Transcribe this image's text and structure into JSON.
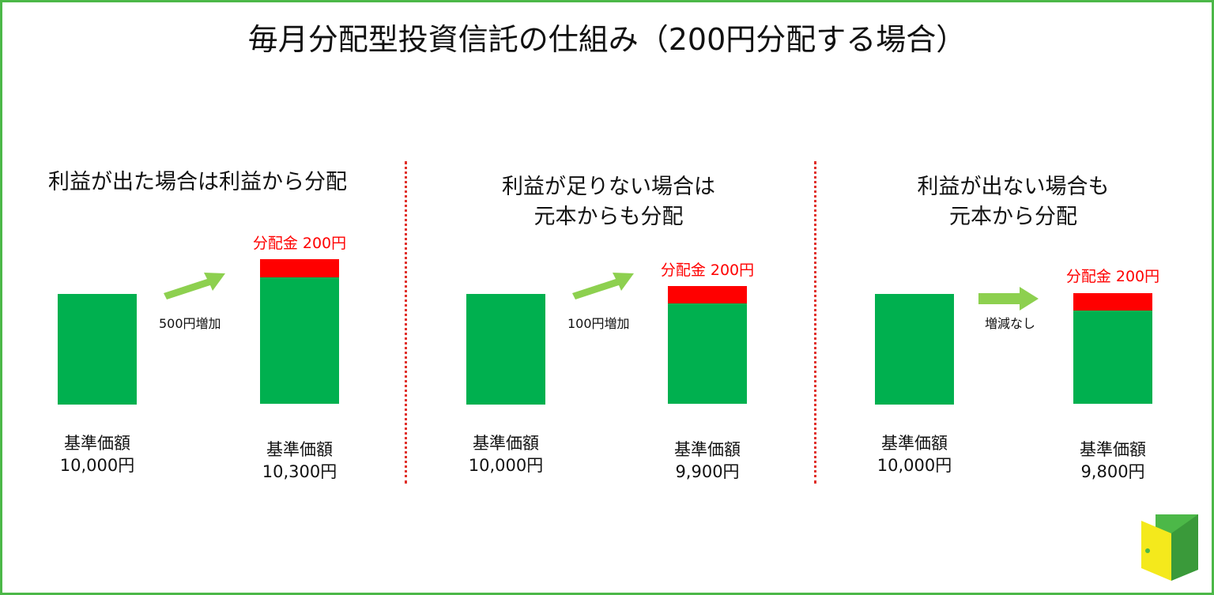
{
  "title": "毎月分配型投資信託の仕組み（200円分配する場合）",
  "colors": {
    "frame": "#4cb848",
    "bar": "#00b04f",
    "distribution": "#ff0000",
    "arrow": "#8dd04f",
    "divider": "#e0302a"
  },
  "panels": [
    {
      "heading": [
        "利益が出た場合は利益から分配"
      ],
      "arrow_label": "500円増加",
      "distribution_label": "分配金 200円",
      "before": {
        "label": "基準価額",
        "value": "10,000円"
      },
      "after": {
        "label": "基準価額",
        "value": "10,300円"
      }
    },
    {
      "heading": [
        "利益が足りない場合は",
        "元本からも分配"
      ],
      "arrow_label": "100円増加",
      "distribution_label": "分配金 200円",
      "before": {
        "label": "基準価額",
        "value": "10,000円"
      },
      "after": {
        "label": "基準価額",
        "value": "9,900円"
      }
    },
    {
      "heading": [
        "利益が出ない場合も",
        "元本から分配"
      ],
      "arrow_label": "増減なし",
      "distribution_label": "分配金 200円",
      "before": {
        "label": "基準価額",
        "value": "10,000円"
      },
      "after": {
        "label": "基準価額",
        "value": "9,800円"
      }
    }
  ],
  "logo": {
    "icon": "door-logo-icon"
  }
}
